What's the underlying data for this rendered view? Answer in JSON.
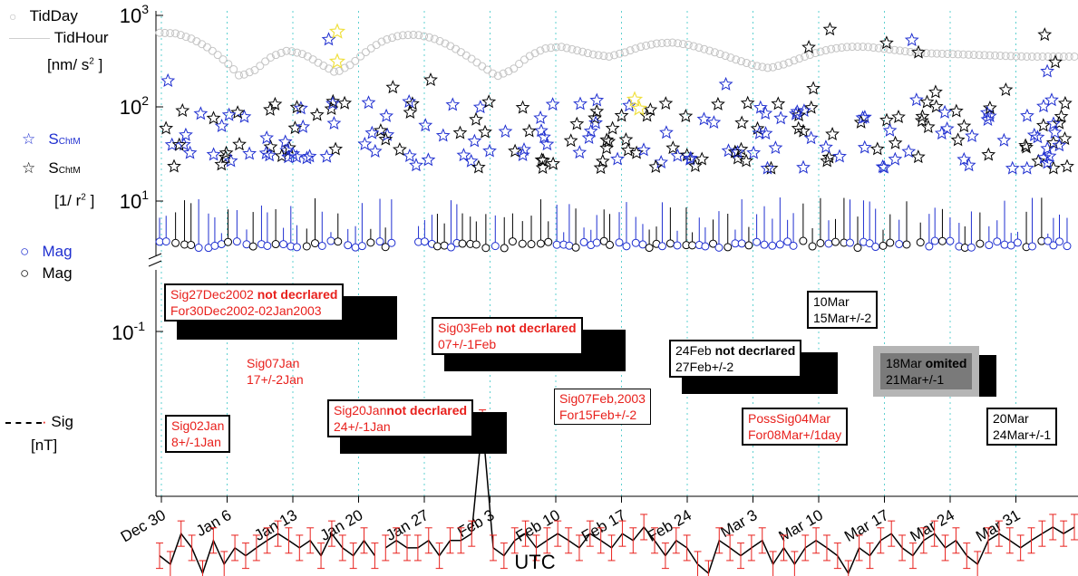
{
  "chart_data": {
    "type": "line",
    "xlabel": "UTC",
    "x_ticks": [
      "Dec 30",
      "Jan 6",
      "Jan 13",
      "Jan 20",
      "Jan 27",
      "Feb 3",
      "Feb 10",
      "Feb 17",
      "Feb 24",
      "Mar 3",
      "Mar 10",
      "Mar 17",
      "Mar 24",
      "Mar 31"
    ],
    "upper_panel": {
      "y_scale": "log",
      "y_ticks": [
        "10^1",
        "10^2",
        "10^3"
      ],
      "tidday_units": "[nm/ s^2 ]",
      "schtm_units": "[1/ r^2 ]",
      "series": [
        {
          "name": "TidDay",
          "marker": "circle",
          "color": "#bdbdbd",
          "values": [
            650,
            640,
            560,
            450,
            330,
            220,
            260,
            360,
            420,
            380,
            300,
            240,
            300,
            420,
            540,
            610,
            620,
            570,
            480,
            380,
            290,
            220,
            260,
            360,
            440,
            460,
            420,
            380,
            360,
            400,
            460,
            500,
            510,
            480,
            430,
            380,
            330,
            290,
            270,
            300,
            350,
            400,
            440,
            460,
            460,
            440,
            420,
            400,
            390,
            385,
            380,
            375,
            370,
            365,
            360,
            360,
            360,
            360
          ]
        },
        {
          "name": "TidHour",
          "marker": "line",
          "color": "#cfcfcf"
        },
        {
          "name": "S_ChtM",
          "marker": "star",
          "color": "#1f2fd0"
        },
        {
          "name": "S_ChtM",
          "marker": "star",
          "color": "#000000"
        },
        {
          "name": "Mag",
          "marker": "circle",
          "color": "#1f2fd0"
        },
        {
          "name": "Mag",
          "marker": "circle",
          "color": "#000000"
        }
      ]
    },
    "lower_panel": {
      "y_scale": "log",
      "y_ticks": [
        "10^-1"
      ],
      "series": [
        {
          "name": "Sig",
          "units": "[nT]",
          "color": "#000000",
          "errorbar_color": "#e8201c",
          "values": [
            0.014,
            0.013,
            0.017,
            0.015,
            0.012,
            0.016,
            0.013,
            0.015,
            0.014,
            0.015,
            0.016,
            0.017,
            0.016,
            0.015,
            0.016,
            0.014,
            0.017,
            0.015,
            0.014,
            0.016,
            0.014,
            0.015,
            0.016,
            0.015,
            0.015,
            0.016,
            0.014,
            0.016,
            0.016,
            0.017,
            0.045,
            0.015,
            0.014,
            0.016,
            0.017,
            0.015,
            0.016,
            0.017,
            0.016,
            0.015,
            0.017,
            0.016,
            0.015,
            0.017,
            0.016,
            0.018,
            0.016,
            0.014,
            0.016,
            0.015,
            0.013,
            0.012,
            0.016,
            0.015,
            0.014,
            0.015,
            0.016,
            0.013,
            0.015,
            0.013,
            0.015,
            0.016,
            0.015,
            0.014,
            0.012,
            0.015,
            0.014,
            0.016,
            0.017,
            0.015,
            0.014,
            0.016,
            0.017,
            0.015,
            0.016,
            0.014,
            0.013,
            0.016,
            0.017,
            0.016,
            0.015,
            0.016,
            0.017,
            0.018,
            0.017,
            0.018
          ]
        }
      ]
    },
    "annotations": [
      {
        "line1": "Sig27Dec2002",
        "line1b": " not decrlared",
        "line2": "For30Dec2002-02Jan2003",
        "color": "red"
      },
      {
        "line1": "Sig07Jan",
        "line2": "17+/-2Jan",
        "color": "red"
      },
      {
        "line1": "Sig20Jan",
        "line1b": "not decrlared",
        "line2": "24+/-1Jan",
        "color": "red"
      },
      {
        "line1": "Sig02Jan",
        "line2": "8+/-1Jan",
        "color": "red"
      },
      {
        "line1": "Sig03Feb ",
        "line1b": " not decrlared",
        "line2": "07+/-1Feb",
        "color": "red"
      },
      {
        "line1": "Sig07Feb,2003",
        "line2": "For15Feb+/-2",
        "color": "red"
      },
      {
        "line1": "24Feb",
        "line1b": " not decrlared",
        "line2": "27Feb+/-2",
        "color": "black"
      },
      {
        "line1": "10Mar",
        "line2": "15Mar+/-2",
        "color": "black"
      },
      {
        "line1": "18Mar",
        "line1b": " omited",
        "line2": "21Mar+/-1",
        "color": "black"
      },
      {
        "line1": "PossSig04Mar",
        "line2": "For08Mar+/1day",
        "color": "red"
      },
      {
        "line1": "20Mar",
        "line2": "24Mar+/-1",
        "color": "black"
      }
    ]
  }
}
